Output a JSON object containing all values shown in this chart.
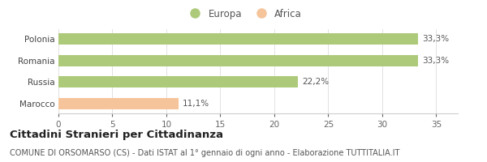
{
  "categories": [
    "Marocco",
    "Russia",
    "Romania",
    "Polonia"
  ],
  "values": [
    11.1,
    22.2,
    33.3,
    33.3
  ],
  "bar_colors": [
    "#f5c49a",
    "#adc97a",
    "#adc97a",
    "#adc97a"
  ],
  "bar_labels": [
    "11,1%",
    "22,2%",
    "33,3%",
    "33,3%"
  ],
  "xlim": [
    0,
    37
  ],
  "xticks": [
    0,
    5,
    10,
    15,
    20,
    25,
    30,
    35
  ],
  "legend_labels": [
    "Europa",
    "Africa"
  ],
  "legend_colors": [
    "#adc97a",
    "#f5c49a"
  ],
  "title": "Cittadini Stranieri per Cittadinanza",
  "subtitle": "COMUNE DI ORSOMARSO (CS) - Dati ISTAT al 1° gennaio di ogni anno - Elaborazione TUTTITALIA.IT",
  "background_color": "#ffffff",
  "bar_height": 0.52,
  "title_fontsize": 9.5,
  "subtitle_fontsize": 7,
  "label_fontsize": 7.5,
  "tick_fontsize": 7.5,
  "legend_fontsize": 8.5
}
